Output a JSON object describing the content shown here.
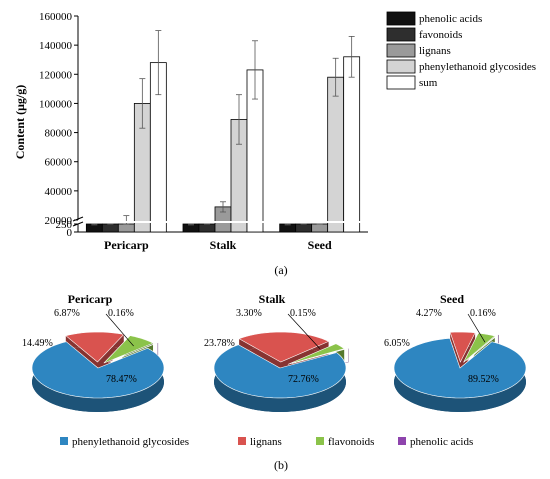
{
  "chart_data": [
    {
      "type": "bar",
      "panel_label": "(a)",
      "categories": [
        "Pericarp",
        "Stalk",
        "Seed"
      ],
      "ylabel": "Content (μg/g)",
      "xlabel": "",
      "broken_axis": true,
      "ylim_lower": [
        0,
        250
      ],
      "ylim_upper": [
        20000,
        160000
      ],
      "yticks_upper": [
        "20000",
        "40000",
        "60000",
        "80000",
        "100000",
        "120000",
        "140000",
        "160000"
      ],
      "yticks_lower": [
        "0",
        "250"
      ],
      "grid": false,
      "legend_position": "right",
      "series": [
        {
          "name": "phenolic acids",
          "color": "#111111",
          "values": [
            250,
            250,
            250
          ],
          "errors": [
            30,
            30,
            30
          ]
        },
        {
          "name": "favonoids",
          "color": "#2e2e2e",
          "values": [
            9000,
            5800,
            6200
          ],
          "errors": [
            1500,
            800,
            1000
          ]
        },
        {
          "name": "lignans",
          "color": "#9a9a9a",
          "values": [
            19000,
            29000,
            9500
          ],
          "errors": [
            4000,
            3500,
            2500
          ]
        },
        {
          "name": "phenylethanoid glycosides",
          "color": "#d4d4d4",
          "values": [
            100000,
            89000,
            118000
          ],
          "errors": [
            17000,
            17000,
            13000
          ]
        },
        {
          "name": "sum",
          "color": "#ffffff",
          "values": [
            128000,
            123000,
            132000
          ],
          "errors": [
            22000,
            20000,
            14000
          ]
        }
      ]
    },
    {
      "type": "pie",
      "panel_label": "(b)",
      "legend_position": "bottom",
      "legend": [
        {
          "name": "phenylethanoid glycosides",
          "color": "#2e86c1"
        },
        {
          "name": "lignans",
          "color": "#d9534f"
        },
        {
          "name": "flavonoids",
          "color": "#8bc34a"
        },
        {
          "name": "phenolic acids",
          "color": "#8e44ad"
        }
      ],
      "pies": [
        {
          "title": "Pericarp",
          "labels": [
            "78.47%",
            "14.49%",
            "6.87%",
            "0.16%"
          ],
          "values": [
            78.47,
            14.49,
            6.87,
            0.16
          ]
        },
        {
          "title": "Stalk",
          "labels": [
            "72.76%",
            "23.78%",
            "3.30%",
            "0.15%"
          ],
          "values": [
            72.76,
            23.78,
            3.3,
            0.15
          ]
        },
        {
          "title": "Seed",
          "labels": [
            "89.52%",
            "6.05%",
            "4.27%",
            "0.16%"
          ],
          "values": [
            89.52,
            6.05,
            4.27,
            0.16
          ]
        }
      ]
    }
  ]
}
